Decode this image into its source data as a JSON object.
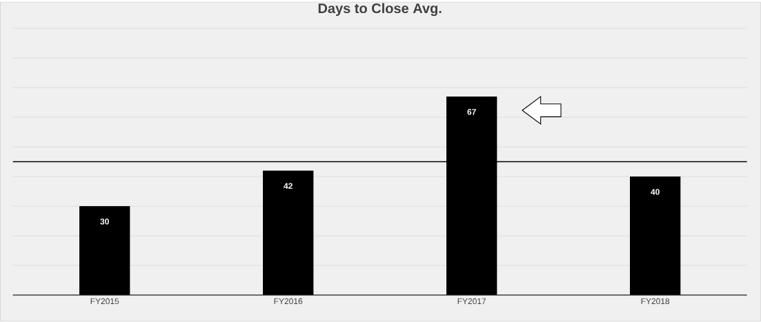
{
  "chart_data": {
    "type": "bar",
    "title": "Days to Close Avg.",
    "categories": [
      "FY2015",
      "FY2016",
      "FY2017",
      "FY2018"
    ],
    "values": [
      30,
      42,
      67,
      40
    ],
    "color": "#000000",
    "data_labels": true,
    "ylim": [
      0,
      90
    ],
    "yticks": [
      {
        "value": 0,
        "label": null
      },
      {
        "value": 10,
        "label": null
      },
      {
        "value": 20,
        "label": null
      },
      {
        "value": 30,
        "label": null
      },
      {
        "value": 40,
        "label": null
      },
      {
        "value": 50,
        "label": null
      },
      {
        "value": 60,
        "label": null
      },
      {
        "value": 70,
        "label": null
      },
      {
        "value": 80,
        "label": null
      },
      {
        "value": 90,
        "label": null
      }
    ],
    "tick_labels": "x",
    "grid": "y",
    "ref_lines": [
      {
        "axis": "y",
        "value": 45,
        "color": "#000000"
      }
    ]
  }
}
